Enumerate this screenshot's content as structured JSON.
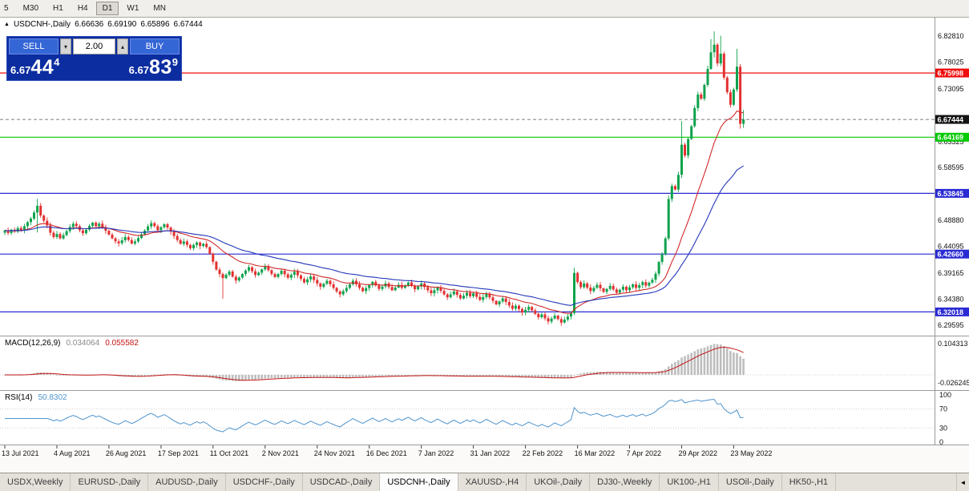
{
  "icons": {
    "spin_down": "▾",
    "spin_up": "▴",
    "tab_scroll_left": "◄",
    "chart_marker": "▲"
  },
  "toolbar": {
    "timeframes": [
      "5",
      "M30",
      "H1",
      "H4",
      "D1",
      "W1",
      "MN"
    ],
    "active": "D1"
  },
  "chart_header": {
    "symbol": "USDCNH-,Daily",
    "open": "6.66636",
    "high": "6.69190",
    "low": "6.65896",
    "close": "6.67444"
  },
  "trade_panel": {
    "sell_label": "SELL",
    "buy_label": "BUY",
    "volume": "2.00",
    "sell_price": {
      "prefix": "6.67",
      "big": "44",
      "sup": "4"
    },
    "buy_price": {
      "prefix": "6.67",
      "big": "83",
      "sup": "9"
    }
  },
  "chart_data": {
    "type": "candlestick",
    "title": "USDCNH-,Daily",
    "candle_up_color": "#0ea24c",
    "candle_down_color": "#e33030",
    "closes": [
      6.47,
      6.4655,
      6.4715,
      6.468,
      6.4745,
      6.47,
      6.478,
      6.4855,
      6.492,
      6.503,
      6.5155,
      6.4975,
      6.488,
      6.4795,
      6.466,
      6.458,
      6.4635,
      6.4555,
      6.4615,
      6.469,
      6.4765,
      6.4825,
      6.478,
      6.4705,
      6.465,
      6.4715,
      6.4785,
      6.4845,
      6.478,
      6.4825,
      6.476,
      6.4695,
      6.4625,
      6.4555,
      6.45,
      6.4465,
      6.452,
      6.458,
      6.4525,
      6.446,
      6.45,
      6.456,
      6.463,
      6.47,
      6.4775,
      6.4835,
      6.478,
      6.4705,
      6.476,
      6.4815,
      6.4755,
      6.468,
      6.46,
      6.4525,
      6.4455,
      6.45,
      6.4435,
      6.4375,
      6.4435,
      6.448,
      6.4415,
      6.4455,
      6.4395,
      6.4275,
      6.4125,
      6.398,
      6.39,
      6.3825,
      6.3885,
      6.3945,
      6.385,
      6.378,
      6.3835,
      6.39,
      6.3965,
      6.4025,
      6.395,
      6.388,
      6.3925,
      6.3985,
      6.4045,
      6.397,
      6.39,
      6.3845,
      6.39,
      6.396,
      6.3895,
      6.383,
      6.3885,
      6.394,
      6.3875,
      6.381,
      6.3745,
      6.38,
      6.3855,
      6.379,
      6.3725,
      6.3665,
      6.372,
      6.3775,
      6.371,
      6.3645,
      6.358,
      6.3525,
      6.3585,
      6.3645,
      6.371,
      6.3775,
      6.371,
      6.3645,
      6.3585,
      6.364,
      6.3695,
      6.3755,
      6.369,
      6.3625,
      6.367,
      6.3725,
      6.366,
      6.36,
      6.365,
      6.37,
      6.3645,
      6.369,
      6.3745,
      6.368,
      6.362,
      6.367,
      6.3725,
      6.366,
      6.36,
      6.3545,
      6.36,
      6.3655,
      6.359,
      6.3525,
      6.347,
      6.3525,
      6.358,
      6.3515,
      6.345,
      6.35,
      6.3555,
      6.349,
      6.3545,
      6.348,
      6.3425,
      6.3475,
      6.3535,
      6.347,
      6.3405,
      6.334,
      6.3395,
      6.345,
      6.3385,
      6.332,
      6.326,
      6.3315,
      6.3255,
      6.319,
      6.324,
      6.3295,
      6.323,
      6.3165,
      6.3105,
      6.3155,
      6.3085,
      6.3025,
      6.308,
      6.3135,
      6.307,
      6.3005,
      6.306,
      6.3115,
      6.318,
      6.392,
      6.375,
      6.3655,
      6.3725,
      6.365,
      6.3585,
      6.3645,
      6.37,
      6.3635,
      6.357,
      6.3625,
      6.368,
      6.3615,
      6.3555,
      6.361,
      6.3665,
      6.36,
      6.3655,
      6.371,
      6.3645,
      6.3695,
      6.375,
      6.3685,
      6.374,
      6.3795,
      6.3905,
      6.412,
      6.4265,
      6.4555,
      6.528,
      6.552,
      6.5455,
      6.5725,
      6.628,
      6.608,
      6.6385,
      6.662,
      6.6955,
      6.7205,
      6.7125,
      6.738,
      6.7675,
      6.798,
      6.812,
      6.7775,
      6.7955,
      6.7515,
      6.7245,
      6.7015,
      6.7295,
      6.7715,
      6.6665,
      6.67444
    ],
    "wick_overrides": {
      "10": {
        "h": 6.5285,
        "l": 6.4665
      },
      "67": {
        "l": 6.3445
      },
      "175": {
        "h": 6.4015,
        "l": 6.3145
      },
      "204": {
        "h": 6.5345,
        "l": 6.4515
      },
      "208": {
        "h": 6.6715
      },
      "217": {
        "h": 6.8225
      },
      "218": {
        "h": 6.8365,
        "l": 6.7885
      },
      "220": {
        "h": 6.8285
      },
      "225": {
        "h": 6.8045
      },
      "226": {
        "h": 6.7765,
        "l": 6.6575
      },
      "227": {
        "o": 6.66636,
        "h": 6.6919,
        "l": 6.65896
      }
    },
    "x_labels": [
      {
        "i": 0,
        "label": "13 Jul 2021"
      },
      {
        "i": 16,
        "label": "4 Aug 2021"
      },
      {
        "i": 32,
        "label": "26 Aug 2021"
      },
      {
        "i": 48,
        "label": "17 Sep 2021"
      },
      {
        "i": 64,
        "label": "11 Oct 2021"
      },
      {
        "i": 80,
        "label": "2 Nov 2021"
      },
      {
        "i": 96,
        "label": "24 Nov 2021"
      },
      {
        "i": 112,
        "label": "16 Dec 2021"
      },
      {
        "i": 128,
        "label": "7 Jan 2022"
      },
      {
        "i": 144,
        "label": "31 Jan 2022"
      },
      {
        "i": 160,
        "label": "22 Feb 2022"
      },
      {
        "i": 176,
        "label": "16 Mar 2022"
      },
      {
        "i": 192,
        "label": "7 Apr 2022"
      },
      {
        "i": 208,
        "label": "29 Apr 2022"
      },
      {
        "i": 224,
        "label": "23 May 2022"
      }
    ],
    "y_ticks": [
      {
        "v": 6.8281,
        "label": "6.82810"
      },
      {
        "v": 6.78025,
        "label": "6.78025"
      },
      {
        "v": 6.73095,
        "label": "6.73095"
      },
      {
        "v": 6.63325,
        "label": "6.63325"
      },
      {
        "v": 6.58595,
        "label": "6.58595"
      },
      {
        "v": 6.4888,
        "label": "6.48880"
      },
      {
        "v": 6.44095,
        "label": "6.44095"
      },
      {
        "v": 6.39165,
        "label": "6.39165"
      },
      {
        "v": 6.3438,
        "label": "6.34380"
      },
      {
        "v": 6.29595,
        "label": "6.29595"
      }
    ],
    "hlines": [
      {
        "price": 6.75998,
        "label": "6.75998",
        "color": "#ef0d0d"
      },
      {
        "price": 6.64169,
        "label": "6.64169",
        "color": "#00ca00"
      },
      {
        "price": 6.53845,
        "label": "6.53845",
        "color": "#2a2ad4"
      },
      {
        "price": 6.4266,
        "label": "6.42660",
        "color": "#2a2ad4"
      },
      {
        "price": 6.32018,
        "label": "6.32018",
        "color": "#2a2ad4"
      }
    ],
    "current_price": {
      "price": 6.67444,
      "label": "6.67444",
      "color": "#141414"
    },
    "moving_averages": [
      {
        "period": 20,
        "color": "#d02a2a"
      },
      {
        "period": 45,
        "color": "#2337b8"
      }
    ],
    "indicators": {
      "macd": {
        "name": "MACD(12,26,9)",
        "value_main": "0.034064",
        "value_signal": "0.055582",
        "fast": 12,
        "slow": 26,
        "signal": 9,
        "hist_color": "#bdbdbd",
        "signal_color": "#c21515",
        "scale_ticks": [
          {
            "v": 0.104313,
            "label": "0.104313"
          },
          {
            "v": -0.026245,
            "label": "-0.026245"
          }
        ]
      },
      "rsi": {
        "name": "RSI(14)",
        "value": "50.8302",
        "period": 14,
        "color": "#4f94cd",
        "levels": [
          70,
          30
        ],
        "scale_ticks": [
          {
            "v": 100,
            "label": "100"
          },
          {
            "v": 70,
            "label": "70"
          },
          {
            "v": 30,
            "label": "30"
          },
          {
            "v": 0,
            "label": "0"
          }
        ]
      }
    }
  },
  "tabs": {
    "items": [
      "USDX,Weekly",
      "EURUSD-,Daily",
      "AUDUSD-,Daily",
      "USDCHF-,Daily",
      "USDCAD-,Daily",
      "USDCNH-,Daily",
      "XAUUSD-,H4",
      "UKOil-,Daily",
      "DJ30-,Weekly",
      "UK100-,H1",
      "USOil-,Daily",
      "HK50-,H1"
    ],
    "active": "USDCNH-,Daily"
  }
}
